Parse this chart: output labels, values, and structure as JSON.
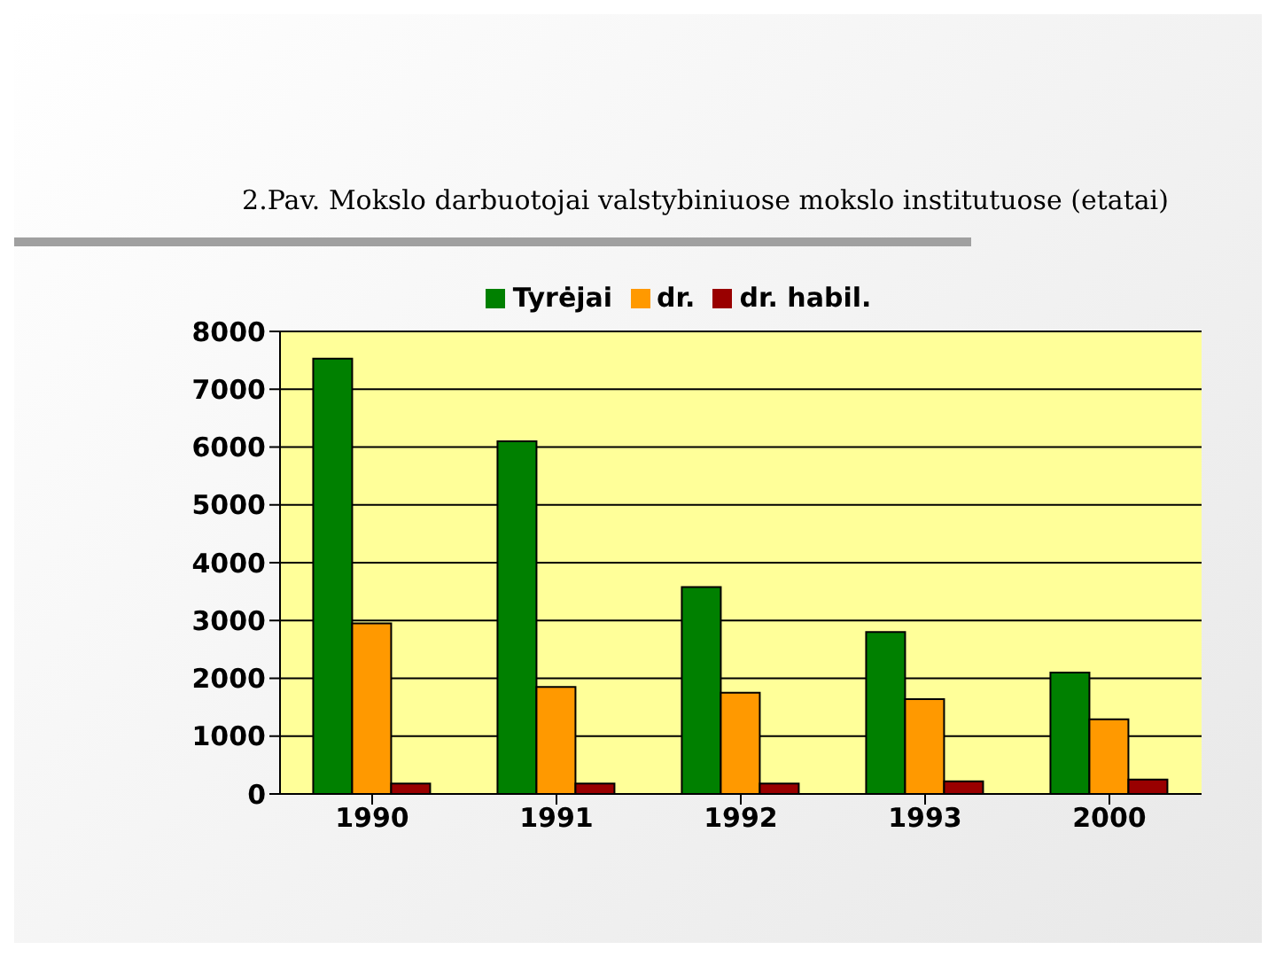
{
  "chart_data": {
    "type": "bar",
    "title": "2.Pav. Mokslo darbuotojai valstybiniuose mokslo institutuose (etatai)",
    "categories": [
      "1990",
      "1991",
      "1992",
      "1993",
      "2000"
    ],
    "series": [
      {
        "name": "Tyrėjai",
        "color": "#008000",
        "values": [
          7530,
          6100,
          3580,
          2800,
          2100
        ]
      },
      {
        "name": "dr.",
        "color": "#ff9900",
        "values": [
          2950,
          1850,
          1750,
          1640,
          1290
        ]
      },
      {
        "name": "dr. habil.",
        "color": "#990000",
        "values": [
          180,
          180,
          180,
          220,
          250
        ]
      }
    ],
    "ylim": [
      0,
      8000
    ],
    "yticks": [
      0,
      1000,
      2000,
      3000,
      4000,
      5000,
      6000,
      7000,
      8000
    ],
    "grid": "y",
    "legend": "top"
  }
}
